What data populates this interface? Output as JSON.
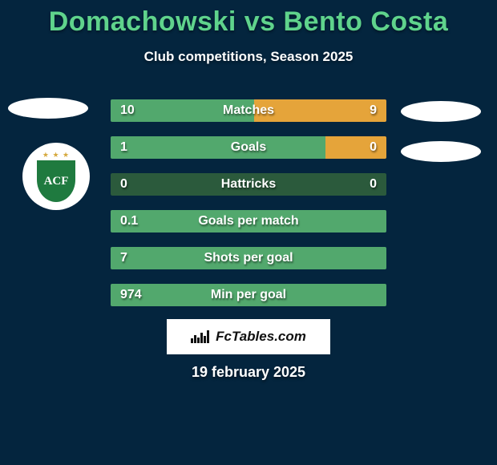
{
  "colors": {
    "background": "#04253e",
    "title": "#5fd38c",
    "subtitle": "#ffffff",
    "bar_left": "#52a86d",
    "bar_right": "#e5a43a",
    "row_bg": "#2b5a3c",
    "shield": "#1f7a3f"
  },
  "title": "Domachowski vs Bento Costa",
  "subtitle": "Club competitions, Season 2025",
  "club_badge": "ACF",
  "rows": [
    {
      "label": "Matches",
      "left": "10",
      "right": "9",
      "left_pct": 52,
      "right_pct": 48
    },
    {
      "label": "Goals",
      "left": "1",
      "right": "0",
      "left_pct": 78,
      "right_pct": 22
    },
    {
      "label": "Hattricks",
      "left": "0",
      "right": "0",
      "left_pct": 0,
      "right_pct": 0
    },
    {
      "label": "Goals per match",
      "left": "0.1",
      "right": "",
      "left_pct": 100,
      "right_pct": 0
    },
    {
      "label": "Shots per goal",
      "left": "7",
      "right": "",
      "left_pct": 100,
      "right_pct": 0
    },
    {
      "label": "Min per goal",
      "left": "974",
      "right": "",
      "left_pct": 100,
      "right_pct": 0
    }
  ],
  "brand": "FcTables.com",
  "date": "19 february 2025"
}
